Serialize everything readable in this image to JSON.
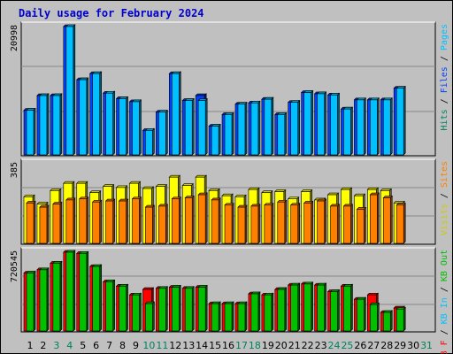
{
  "title": "Daily usage for February 2024",
  "colors": {
    "background": "#c0c0c0",
    "panel": "#c0c0c0",
    "grid": "#888888",
    "hits": "#00805c",
    "files": "#0040ff",
    "pages": "#00c0ff",
    "visits": "#ffff00",
    "sites": "#ff8000",
    "kbin": "#00c0ff",
    "kbout": "#00c000",
    "kbf": "#ff0000",
    "weekend": "#00805c",
    "weekday": "#000000"
  },
  "right_labels": {
    "hits_files_pages": [
      {
        "text": "Hits",
        "color": "#00805c"
      },
      {
        "text": " / ",
        "color": "#000000"
      },
      {
        "text": "Files",
        "color": "#0040ff"
      },
      {
        "text": " / ",
        "color": "#000000"
      },
      {
        "text": "Pages",
        "color": "#00c0ff"
      }
    ],
    "visits_sites": [
      {
        "text": "Visits",
        "color": "#cccc00"
      },
      {
        "text": " / ",
        "color": "#000000"
      },
      {
        "text": "Sites",
        "color": "#ff8000"
      }
    ],
    "kb": [
      {
        "text": "KB F",
        "color": "#ff0000"
      },
      {
        "text": " / ",
        "color": "#000000"
      },
      {
        "text": "KB In",
        "color": "#00c0ff"
      },
      {
        "text": " / ",
        "color": "#000000"
      },
      {
        "text": "KB Out",
        "color": "#00c000"
      }
    ]
  },
  "chart_data": {
    "type": "bar",
    "title": "Daily usage for February 2024",
    "x": [
      "1",
      "2",
      "3",
      "4",
      "5",
      "6",
      "7",
      "8",
      "9",
      "10",
      "11",
      "12",
      "13",
      "14",
      "15",
      "16",
      "17",
      "18",
      "19",
      "20",
      "21",
      "22",
      "23",
      "24",
      "25",
      "26",
      "27",
      "28",
      "29",
      "30",
      "31"
    ],
    "weekend_days": [
      "3",
      "4",
      "10",
      "11",
      "17",
      "18",
      "24",
      "25",
      "31"
    ],
    "panels": [
      {
        "name": "hits_files_pages",
        "ymax_label": "20998",
        "ymax": 20998,
        "series": [
          {
            "name": "Files",
            "values": [
              7300,
              9700,
              9700,
              20998,
              12300,
              13300,
              10100,
              9200,
              8700,
              4000,
              7000,
              13300,
              8900,
              9700,
              4700,
              6600,
              8300,
              8500,
              9100,
              6600,
              8600,
              10200,
              10000,
              9800,
              7500,
              9000,
              9000,
              9000,
              10900,
              null,
              null
            ]
          },
          {
            "name": "Pages",
            "values": [
              7300,
              9700,
              9700,
              20998,
              12300,
              13300,
              10100,
              9200,
              8700,
              4000,
              7000,
              13300,
              8900,
              8900,
              4700,
              6600,
              8300,
              8500,
              9100,
              6600,
              8600,
              10200,
              10000,
              9800,
              7500,
              9000,
              9000,
              9000,
              10900,
              null,
              null
            ]
          }
        ]
      },
      {
        "name": "visits_sites",
        "ymax_label": "385",
        "ymax": 385,
        "series": [
          {
            "name": "Visits",
            "values": [
              225,
              190,
              255,
              290,
              290,
              245,
              275,
              270,
              290,
              265,
              275,
              320,
              280,
              320,
              255,
              230,
              225,
              260,
              245,
              250,
              215,
              250,
              210,
              235,
              260,
              230,
              260,
              255,
              195,
              null,
              null
            ]
          },
          {
            "name": "Sites",
            "values": [
              195,
              175,
              190,
              210,
              215,
              200,
              205,
              205,
              215,
              175,
              180,
              215,
              220,
              235,
              210,
              185,
              175,
              180,
              185,
              200,
              185,
              195,
              205,
              180,
              180,
              165,
              235,
              220,
              185,
              null,
              null
            ]
          }
        ]
      },
      {
        "name": "kb",
        "ymax_label": "720545",
        "ymax": 720545,
        "series": [
          {
            "name": "KB F",
            "values": [
              530000,
              560000,
              620000,
              720545,
              710000,
              590000,
              450000,
              410000,
              330000,
              380000,
              390000,
              400000,
              390000,
              400000,
              250000,
              250000,
              250000,
              340000,
              330000,
              380000,
              420000,
              430000,
              420000,
              360000,
              410000,
              290000,
              330000,
              170000,
              210000,
              null,
              null
            ]
          },
          {
            "name": "KB Out",
            "values": [
              530000,
              560000,
              620000,
              720545,
              710000,
              590000,
              450000,
              410000,
              330000,
              250000,
              390000,
              400000,
              390000,
              400000,
              250000,
              250000,
              250000,
              340000,
              330000,
              380000,
              420000,
              430000,
              420000,
              360000,
              410000,
              290000,
              240000,
              170000,
              200000,
              null,
              null
            ]
          }
        ]
      }
    ]
  }
}
